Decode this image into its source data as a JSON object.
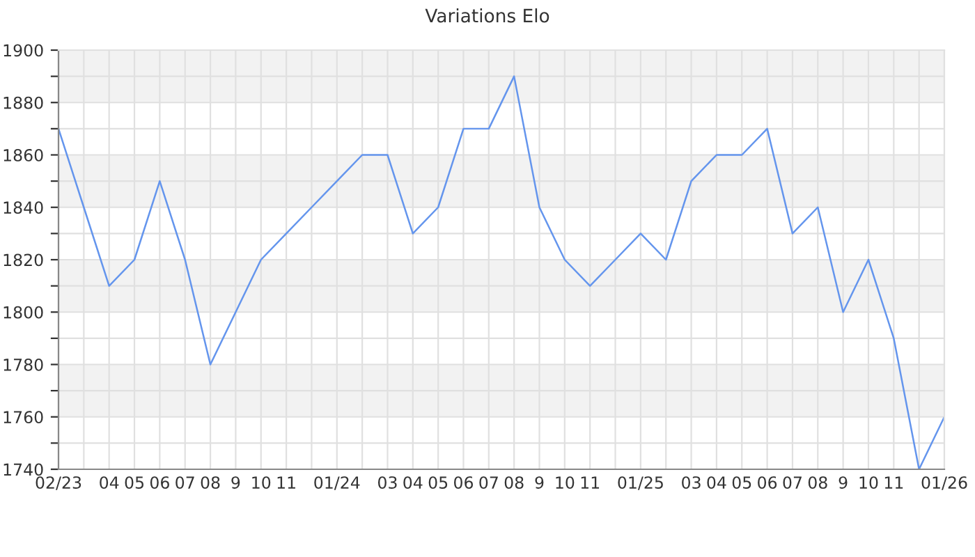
{
  "chart_data": {
    "type": "line",
    "title": "Variations Elo",
    "categories": [
      "02/23",
      null,
      "04",
      "05",
      "06",
      "07",
      "08",
      "9",
      "10",
      "11",
      null,
      "01/24",
      null,
      "03",
      "04",
      "05",
      "06",
      "07",
      "08",
      "9",
      "10",
      "11",
      null,
      "01/25",
      null,
      "03",
      "04",
      "05",
      "06",
      "07",
      "08",
      "9",
      "10",
      "11",
      null,
      "01/26"
    ],
    "series": [
      {
        "color": "#6495ed",
        "values": [
          1870,
          1840,
          1810,
          1820,
          1850,
          1820,
          1780,
          1800,
          1820,
          1830,
          1840,
          1850,
          1860,
          1860,
          1830,
          1840,
          1870,
          1870,
          1890,
          1840,
          1820,
          1810,
          1820,
          1830,
          1820,
          1850,
          1860,
          1860,
          1870,
          1830,
          1840,
          1800,
          1820,
          1790,
          1740,
          1760
        ]
      }
    ],
    "ylim": [
      1740,
      1900
    ],
    "yticks": [
      1740,
      {
        "value": 1750,
        "label": null
      },
      1760,
      {
        "value": 1770,
        "label": null
      },
      1780,
      {
        "value": 1790,
        "label": null
      },
      1800,
      {
        "value": 1810,
        "label": null
      },
      1820,
      {
        "value": 1830,
        "label": null
      },
      1840,
      {
        "value": 1850,
        "label": null
      },
      1860,
      {
        "value": 1870,
        "label": null
      },
      1880,
      {
        "value": 1890,
        "label": null
      },
      1900
    ],
    "bands": [
      {
        "axis": "y",
        "from": 1760,
        "to": 1780,
        "color": "#f2f2f2"
      },
      {
        "axis": "y",
        "from": 1800,
        "to": 1820,
        "color": "#f2f2f2"
      },
      {
        "axis": "y",
        "from": 1840,
        "to": 1860,
        "color": "#f2f2f2"
      },
      {
        "axis": "y",
        "from": 1880,
        "to": 1900,
        "color": "#f2f2f2"
      }
    ],
    "grid": true,
    "marker": "none",
    "line_style": "solid"
  }
}
